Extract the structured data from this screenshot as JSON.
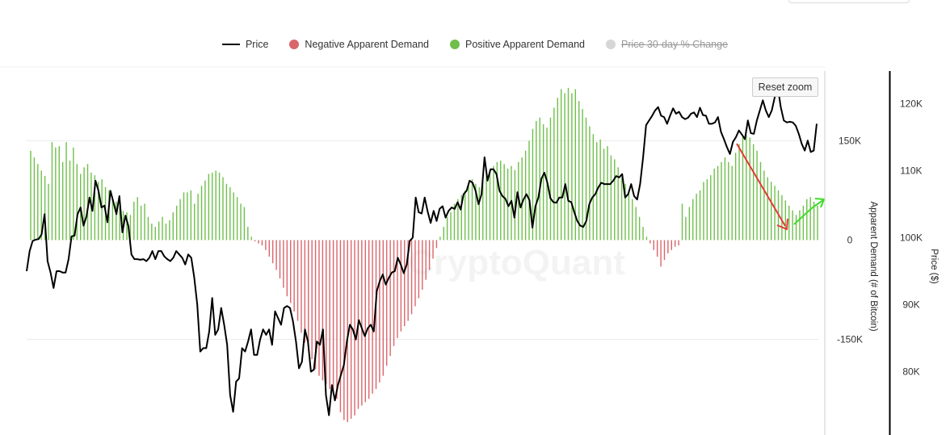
{
  "legend": {
    "price": "Price",
    "negative": "Negative Apparent Demand",
    "positive": "Positive Apparent Demand",
    "change": "Price 30-day % Change"
  },
  "reset_zoom": "Reset zoom",
  "watermark": "CryptoQuant",
  "colors": {
    "price": "#000000",
    "negative": "#d9666b",
    "positive": "#6fbf4b",
    "change": "#cccccc",
    "arrow_down": "#e53935",
    "arrow_up": "#3ddc27"
  },
  "chart_data": {
    "type": "bar",
    "left_axis": {
      "title": "Apparent Demand (# of Bitcoin)",
      "ticks": [
        "150K",
        "0",
        "-150K"
      ],
      "tick_values": [
        150000,
        0,
        -150000
      ],
      "range": [
        -295000,
        260000
      ]
    },
    "right_axis": {
      "title": "Price ($)",
      "ticks": [
        "120K",
        "110K",
        "100K",
        "90K",
        "80K"
      ],
      "tick_values": [
        120000,
        110000,
        100000,
        90000,
        80000
      ],
      "range": [
        71000,
        126000
      ]
    },
    "series": [
      {
        "name": "Apparent Demand",
        "type": "bar",
        "values": [
          135000,
          125000,
          115000,
          105000,
          97000,
          85000,
          148000,
          140000,
          142000,
          118000,
          148000,
          120000,
          140000,
          115000,
          100000,
          110000,
          115000,
          102000,
          98000,
          88000,
          92000,
          80000,
          75000,
          62000,
          58000,
          50000,
          44000,
          42000,
          38000,
          58000,
          65000,
          52000,
          55000,
          35000,
          25000,
          20000,
          28000,
          35000,
          25000,
          30000,
          42000,
          52000,
          62000,
          72000,
          72000,
          75000,
          55000,
          70000,
          82000,
          90000,
          100000,
          102000,
          105000,
          102000,
          95000,
          85000,
          80000,
          72000,
          65000,
          55000,
          50000,
          20000,
          5000,
          -2000,
          -5000,
          -8000,
          -15000,
          -25000,
          -35000,
          -45000,
          -58000,
          -72000,
          -85000,
          -95000,
          -108000,
          -122000,
          -140000,
          -155000,
          -165000,
          -180000,
          -195000,
          -205000,
          -212000,
          -218000,
          -225000,
          -232000,
          -240000,
          -260000,
          -272000,
          -275000,
          -270000,
          -265000,
          -255000,
          -250000,
          -245000,
          -240000,
          -232000,
          -225000,
          -215000,
          -205000,
          -190000,
          -175000,
          -160000,
          -148000,
          -138000,
          -130000,
          -122000,
          -112000,
          -100000,
          -88000,
          -75000,
          -60000,
          -45000,
          -28000,
          -12000,
          5000,
          20000,
          35000,
          42000,
          55000,
          62000,
          68000,
          75000,
          85000,
          92000,
          85000,
          80000,
          90000,
          98000,
          105000,
          112000,
          118000,
          120000,
          115000,
          108000,
          112000,
          106000,
          118000,
          125000,
          135000,
          150000,
          168000,
          180000,
          185000,
          175000,
          170000,
          185000,
          200000,
          215000,
          228000,
          222000,
          230000,
          222000,
          228000,
          210000,
          198000,
          185000,
          172000,
          160000,
          148000,
          152000,
          138000,
          142000,
          128000,
          122000,
          110000,
          95000,
          85000,
          75000,
          62000,
          50000,
          35000,
          20000,
          5000,
          -5000,
          -15000,
          -25000,
          -40000,
          -30000,
          -20000,
          -15000,
          -10000,
          -8000,
          55000,
          35000,
          50000,
          62000,
          70000,
          75000,
          88000,
          92000,
          98000,
          108000,
          112000,
          118000,
          125000,
          118000,
          112000,
          132000,
          145000,
          155000,
          160000,
          155000,
          145000,
          135000,
          118000,
          105000,
          95000,
          88000,
          82000,
          75000,
          68000,
          60000,
          52000,
          45000,
          38000,
          45000,
          52000,
          62000,
          65000,
          58000,
          52000
        ]
      },
      {
        "name": "Price",
        "type": "line",
        "values": [
          95000,
          98000,
          99500,
          99700,
          99800,
          100500,
          103500,
          96500,
          94800,
          92500,
          95000,
          95000,
          94800,
          94800,
          96800,
          100200,
          100300,
          103500,
          104500,
          101800,
          103200,
          106000,
          104000,
          108500,
          107000,
          104500,
          104800,
          102300,
          107000,
          105300,
          103500,
          106200,
          100800,
          103300,
          101700,
          97500,
          96800,
          96800,
          96700,
          96800,
          96500,
          97000,
          98000,
          96800,
          98000,
          98000,
          97200,
          96800,
          96500,
          97000,
          98000,
          97500,
          97000,
          96000,
          97500,
          97000,
          94000,
          90000,
          83000,
          83500,
          83500,
          86000,
          91000,
          85500,
          86300,
          89500,
          87000,
          84000,
          76500,
          74000,
          78500,
          79000,
          83500,
          83000,
          84500,
          86300,
          82500,
          82500,
          84800,
          86300,
          85500,
          86300,
          84000,
          89000,
          88000,
          87000,
          89500,
          89800,
          89500,
          87500,
          84500,
          80500,
          81500,
          86300,
          84500,
          80000,
          80300,
          84500,
          84000,
          86300,
          76500,
          73500,
          78000,
          75700,
          78000,
          79500,
          81000,
          84500,
          87000,
          86300,
          84800,
          87700,
          86500,
          85300,
          86500,
          87000,
          86000,
          92000,
          93500,
          94500,
          93000,
          94000,
          94800,
          95000,
          97000,
          96000,
          94700,
          96000,
          99500,
          100000,
          106000,
          103800,
          103600,
          106000,
          103900,
          102200,
          104000,
          102500,
          104300,
          104700,
          103000,
          104000,
          104500,
          104300,
          105300,
          104200,
          106500,
          107000,
          108500,
          108200,
          107000,
          105000,
          106500,
          112000,
          108500,
          110200,
          110200,
          109500,
          107000,
          106200,
          105800,
          104700,
          105500,
          103000,
          106800,
          104500,
          105700,
          106500,
          105600,
          101500,
          104700,
          106000,
          108800,
          109700,
          108200,
          105900,
          105300,
          105200,
          106000,
          106000,
          108000,
          105500,
          105300,
          103800,
          102500,
          101800,
          101600,
          102500,
          105000,
          106000,
          106500,
          107500,
          108200,
          108000,
          108000,
          108000,
          108500,
          109200,
          109000,
          109500,
          106000,
          106500,
          108000,
          106200,
          105700,
          108000,
          112000,
          116800,
          117500,
          118200,
          119000,
          119500,
          118200,
          118000,
          117000,
          118200,
          119300,
          118500,
          118800,
          118000,
          117700,
          117900,
          118500,
          118700,
          118000,
          119400,
          118300,
          118200,
          117000,
          117000,
          117200,
          118000,
          115800,
          114700,
          113500,
          112500,
          114300,
          115000,
          116000,
          115400,
          114700,
          117500,
          115600,
          115500,
          117500,
          119000,
          120500,
          119000,
          118000,
          119000,
          121000,
          122500,
          119500,
          117500,
          117200,
          117300,
          117200,
          116700,
          115500,
          114000,
          113000,
          114500,
          112800,
          113000,
          117000
        ]
      }
    ]
  }
}
